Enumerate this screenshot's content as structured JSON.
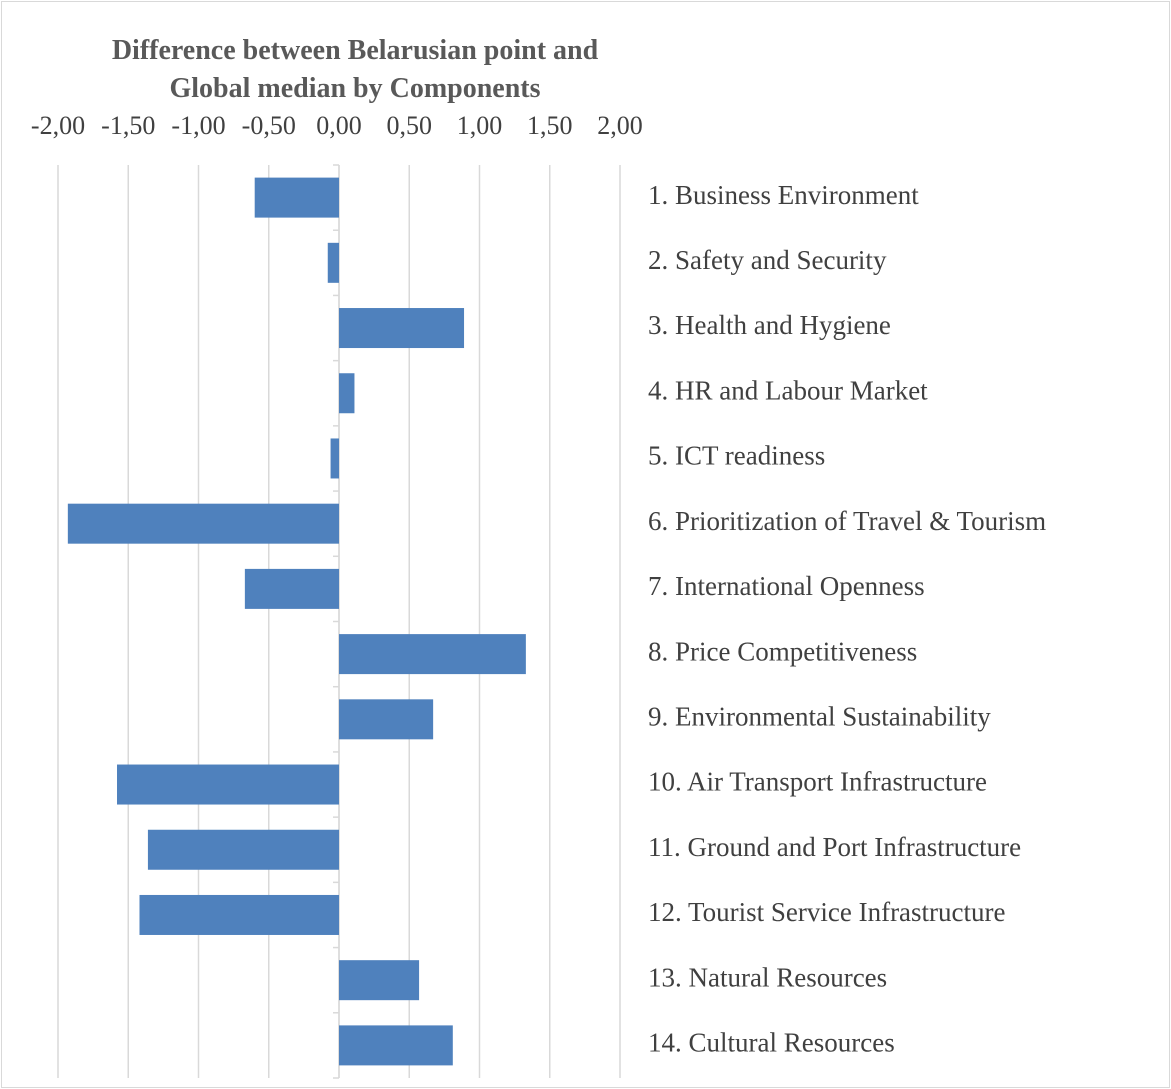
{
  "chart_data": {
    "type": "barh",
    "title": "Difference between Belarusian point and Global median by Components",
    "categories": [
      "1. Business Environment",
      "2. Safety and Security",
      "3. Health and Hygiene",
      "4. HR and Labour Market",
      "5. ICT readiness",
      "6. Prioritization of Travel & Tourism",
      "7. International Openness",
      "8. Price Competitiveness",
      "9. Environmental Sustainability",
      "10. Air Transport Infrastructure",
      "11. Ground and Port Infrastructure",
      "12. Tourist Service Infrastructure",
      "13. Natural Resources",
      "14. Cultural Resources"
    ],
    "values": [
      -0.6,
      -0.08,
      0.89,
      0.11,
      -0.06,
      -1.93,
      -0.67,
      1.33,
      0.67,
      -1.58,
      -1.36,
      -1.42,
      0.57,
      0.81
    ],
    "color": "#4f81bd",
    "xlim": [
      -2,
      2
    ],
    "xticks": [
      {
        "value": -2,
        "label": "-2,00"
      },
      {
        "value": -1.5,
        "label": "-1,50"
      },
      {
        "value": -1,
        "label": "-1,00"
      },
      {
        "value": -0.5,
        "label": "-0,50"
      },
      {
        "value": 0,
        "label": "0,00"
      },
      {
        "value": 0.5,
        "label": "0,50"
      },
      {
        "value": 1,
        "label": "1,00"
      },
      {
        "value": 1.5,
        "label": "1,50"
      },
      {
        "value": 2,
        "label": "2,00"
      }
    ],
    "grid": true
  }
}
